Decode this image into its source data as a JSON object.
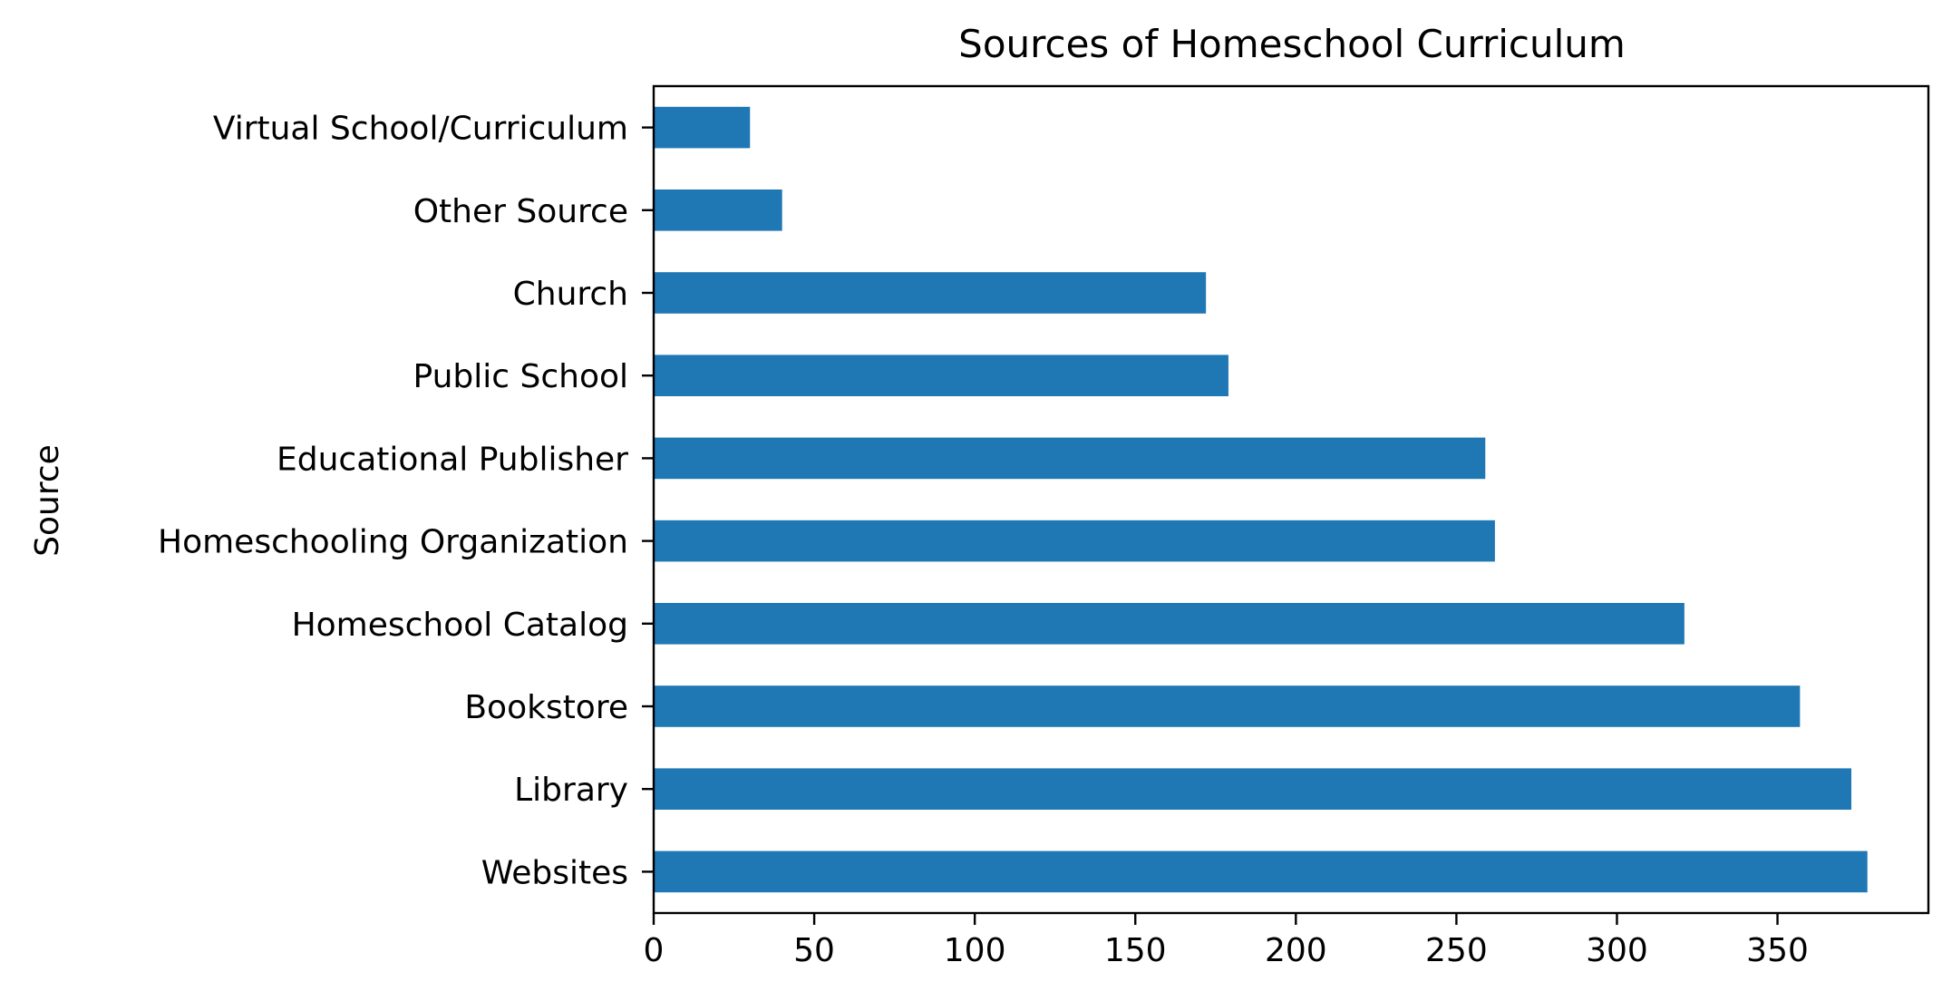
{
  "chart_data": {
    "type": "bar",
    "orientation": "horizontal",
    "title": "Sources of Homeschool Curriculum",
    "xlabel": "",
    "ylabel": "Source",
    "categories": [
      "Websites",
      "Library",
      "Bookstore",
      "Homeschool Catalog",
      "Homeschooling Organization",
      "Educational Publisher",
      "Public School",
      "Church",
      "Other Source",
      "Virtual School/Curriculum"
    ],
    "values": [
      378,
      373,
      357,
      321,
      262,
      259,
      179,
      172,
      40,
      30
    ],
    "xlim": [
      0,
      397
    ],
    "xticks": [
      0,
      50,
      100,
      150,
      200,
      250,
      300,
      350
    ],
    "bar_color": "#1f77b4",
    "grid": false,
    "legend": "none"
  }
}
